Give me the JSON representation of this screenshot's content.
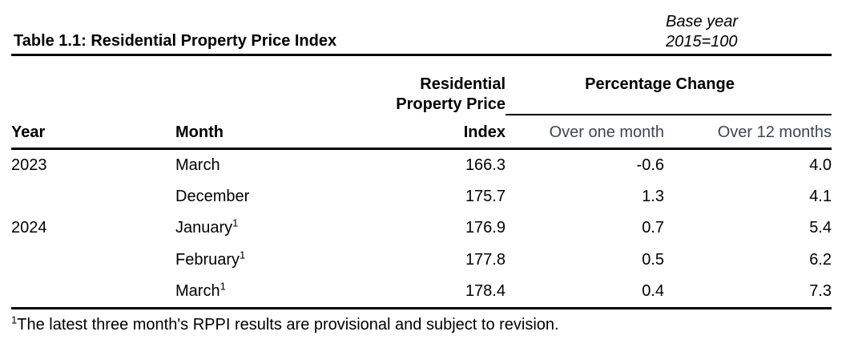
{
  "meta": {
    "title": "Table 1.1: Residential Property Price Index",
    "base_year_line1": "Base year",
    "base_year_line2": "2015=100"
  },
  "table": {
    "headers": {
      "year": "Year",
      "month": "Month",
      "index_line1": "Residential",
      "index_line2": "Property Price",
      "index_line3": "Index",
      "pct_change_group": "Percentage Change",
      "over_one_month": "Over one month",
      "over_12_months": "Over 12 months"
    },
    "rows": [
      {
        "year": "2023",
        "month": "March",
        "sup": "",
        "index": "166.3",
        "mom": "-0.6",
        "yoy": "4.0"
      },
      {
        "year": "",
        "month": "December",
        "sup": "",
        "index": "175.7",
        "mom": "1.3",
        "yoy": "4.1"
      },
      {
        "year": "2024",
        "month": "January",
        "sup": "1",
        "index": "176.9",
        "mom": "0.7",
        "yoy": "5.4"
      },
      {
        "year": "",
        "month": "February",
        "sup": "1",
        "index": "177.8",
        "mom": "0.5",
        "yoy": "6.2"
      },
      {
        "year": "",
        "month": "March",
        "sup": "1",
        "index": "178.4",
        "mom": "0.4",
        "yoy": "7.3"
      }
    ]
  },
  "footnote": {
    "sup": "1",
    "text": "The latest three month's RPPI results are provisional and subject to revision."
  },
  "colors": {
    "text": "#000000",
    "subheader_slate": "#3d4652",
    "rule": "#000000",
    "background": "#ffffff"
  }
}
